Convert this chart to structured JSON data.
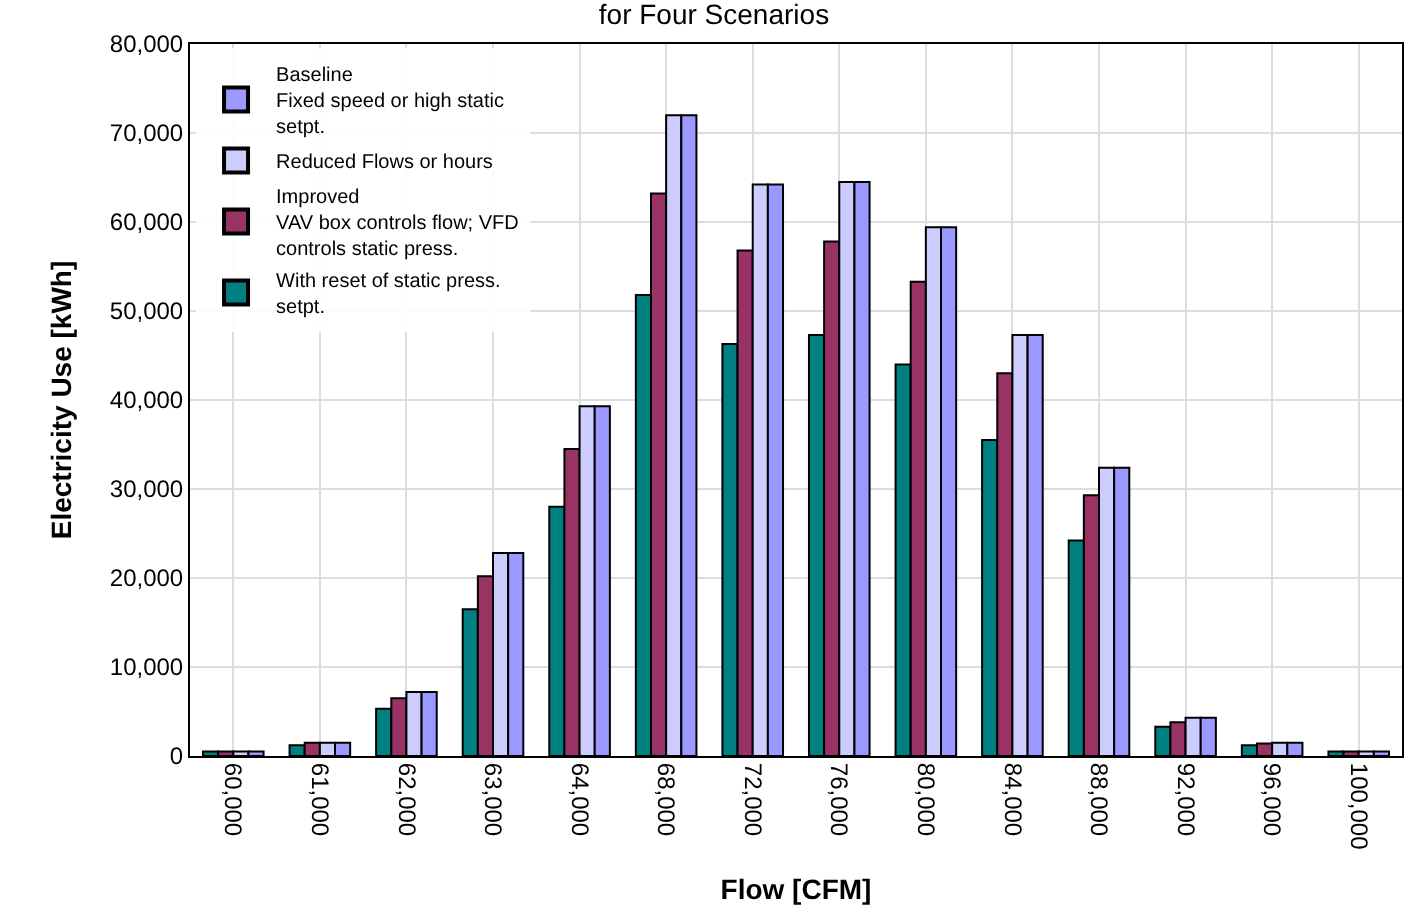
{
  "chart_data": {
    "type": "bar",
    "title": "for Four Scenarios",
    "xlabel": "Flow [CFM]",
    "ylabel": "Electricity Use [kWh]",
    "categories": [
      "60,000",
      "61,000",
      "62,000",
      "63,000",
      "64,000",
      "68,000",
      "72,000",
      "76,000",
      "80,000",
      "84,000",
      "88,000",
      "92,000",
      "96,000",
      "100,000"
    ],
    "series": [
      {
        "name": "With reset of static press. setpt.",
        "color": "#008080",
        "values": [
          500,
          1200,
          5300,
          16500,
          28000,
          51800,
          46300,
          47300,
          44000,
          35500,
          24200,
          3300,
          1200,
          500
        ]
      },
      {
        "name": "Improved\nVAV box controls flow; VFD controls static press.",
        "color": "#993366",
        "values": [
          500,
          1500,
          6500,
          20200,
          34500,
          63200,
          56800,
          57800,
          53300,
          43000,
          29300,
          3800,
          1400,
          500
        ]
      },
      {
        "name": "Reduced Flows or hours",
        "color": "#ccccff",
        "values": [
          500,
          1500,
          7200,
          22800,
          39300,
          72000,
          64200,
          64500,
          59400,
          47300,
          32400,
          4300,
          1500,
          500
        ]
      },
      {
        "name": "Baseline\nFixed speed or high static setpt.",
        "color": "#9999ff",
        "values": [
          500,
          1500,
          7200,
          22800,
          39300,
          72000,
          64200,
          64500,
          59400,
          47300,
          32400,
          4300,
          1500,
          500
        ]
      }
    ],
    "ylim": [
      0,
      80000
    ],
    "yticks": [
      {
        "value": 0,
        "label": "0"
      },
      {
        "value": 10000,
        "label": "10,000"
      },
      {
        "value": 20000,
        "label": "20,000"
      },
      {
        "value": 30000,
        "label": "30,000"
      },
      {
        "value": 40000,
        "label": "40,000"
      },
      {
        "value": 50000,
        "label": "50,000"
      },
      {
        "value": 60000,
        "label": "60,000"
      },
      {
        "value": 70000,
        "label": "70,000"
      },
      {
        "value": 80000,
        "label": "80,000"
      }
    ],
    "grid": true,
    "legend": "top left"
  }
}
